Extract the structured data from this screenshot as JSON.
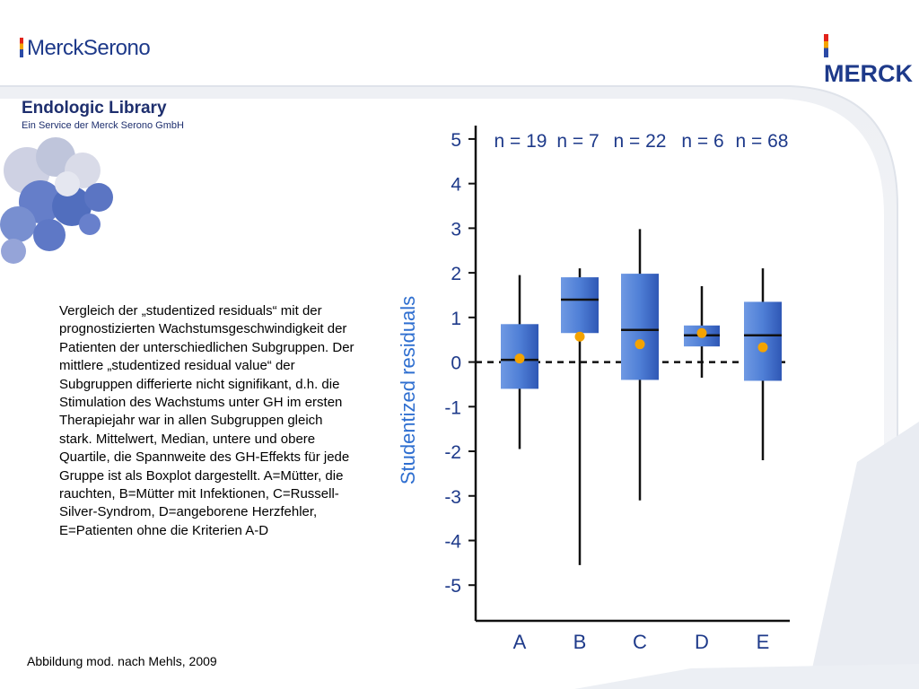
{
  "header": {
    "left_logo": "MerckSerono",
    "right_logo": "MERCK",
    "library_title": "Endologic Library",
    "library_subtitle": "Ein Service der Merck Serono GmbH"
  },
  "description": "Vergleich der „studentized residuals“ mit der prognostizierten Wachstumsgeschwindigkeit der Patienten der unterschiedlichen Subgruppen. Der mittlere „studentized residual value“ der Subgruppen differierte nicht signifikant, d.h. die Stimulation des Wachstums unter GH im ersten Therapiejahr war in allen Subgruppen gleich stark. Mittelwert, Median, untere und obere Quartile, die Spannweite des GH-Effekts für jede Gruppe ist als Boxplot dargestellt. A=Mütter, die rauchten, B=Mütter mit Infektionen, C=Russell-Silver-Syndrom, D=angeborene Herzfehler, E=Patienten ohne die Kriterien A-D",
  "source": "Abbildung mod. nach Mehls, 2009",
  "colors": {
    "box_fill": "#4f7fd6",
    "mean_dot": "#f4a300",
    "brand_blue": "#1e3a8a",
    "axis_label": "#2f6fd0"
  },
  "chart_data": {
    "type": "boxplot",
    "ylabel": "Studentized residuals",
    "ylim": [
      -5.8,
      5.3
    ],
    "yticks": [
      5,
      4,
      3,
      2,
      1,
      0,
      -1,
      -2,
      -3,
      -4,
      -5
    ],
    "reference_line": 0,
    "categories": [
      "A",
      "B",
      "C",
      "D",
      "E"
    ],
    "counts": [
      "n = 19",
      "n = 7",
      "n = 22",
      "n = 6",
      "n = 68"
    ],
    "boxes": [
      {
        "category": "A",
        "min": -1.95,
        "q1": -0.6,
        "median": 0.05,
        "q3": 0.85,
        "max": 1.95,
        "mean": 0.08
      },
      {
        "category": "B",
        "min": -4.55,
        "q1": 0.65,
        "median": 1.4,
        "q3": 1.9,
        "max": 2.1,
        "mean": 0.57
      },
      {
        "category": "C",
        "min": -3.1,
        "q1": -0.4,
        "median": 0.72,
        "q3": 1.98,
        "max": 2.98,
        "mean": 0.4
      },
      {
        "category": "D",
        "min": -0.35,
        "q1": 0.35,
        "median": 0.6,
        "q3": 0.82,
        "max": 1.7,
        "mean": 0.65
      },
      {
        "category": "E",
        "min": -2.2,
        "q1": -0.42,
        "median": 0.6,
        "q3": 1.35,
        "max": 2.1,
        "mean": 0.33
      }
    ]
  }
}
